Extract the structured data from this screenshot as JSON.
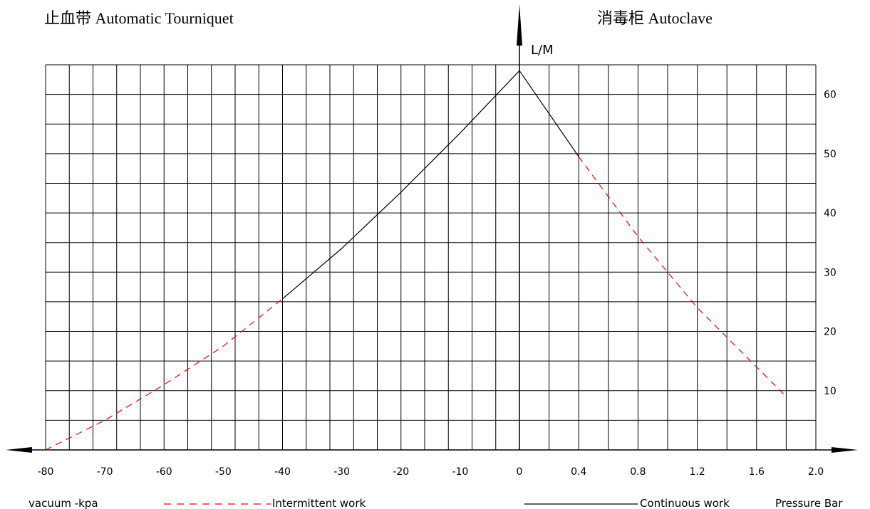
{
  "titles": {
    "left": "止血带 Automatic Tourniquet",
    "right": "消毒柜 Autoclave"
  },
  "chart_data": {
    "type": "line",
    "y_axis": {
      "label": "L/M",
      "range": [
        0,
        65
      ],
      "ticks": [
        10,
        20,
        30,
        40,
        50,
        60
      ],
      "grid_step": 5
    },
    "x_axis_left": {
      "label": "vacuum -kpa",
      "range": [
        -80,
        0
      ],
      "ticks": [
        -80,
        -70,
        -60,
        -50,
        -40,
        -30,
        -20,
        -10,
        0
      ]
    },
    "x_axis_right": {
      "label": "Pressure Bar",
      "range": [
        0,
        2.0
      ],
      "ticks": [
        "0.4",
        "0.8",
        "1.2",
        "1.6",
        "2.0"
      ],
      "tick_values": [
        0.4,
        0.8,
        1.2,
        1.6,
        2.0
      ]
    },
    "legend": [
      {
        "name": "Intermittent work",
        "style": "dashed",
        "color": "#ff0000"
      },
      {
        "name": "Continuous work",
        "style": "solid",
        "color": "#000000"
      }
    ],
    "grid": true,
    "series": [
      {
        "name": "Intermittent work",
        "side": "vacuum",
        "points": [
          [
            -80,
            0
          ],
          [
            -70,
            5
          ],
          [
            -60,
            11
          ],
          [
            -50,
            17.5
          ],
          [
            -40,
            25.5
          ]
        ]
      },
      {
        "name": "Continuous work",
        "side": "vacuum",
        "points": [
          [
            -40,
            25.5
          ],
          [
            -30,
            34
          ],
          [
            -20,
            43.5
          ],
          [
            -10,
            53.5
          ],
          [
            0,
            64
          ]
        ]
      },
      {
        "name": "Continuous work",
        "side": "pressure",
        "points": [
          [
            0,
            64
          ],
          [
            0.4,
            49.5
          ]
        ]
      },
      {
        "name": "Intermittent work",
        "side": "pressure",
        "points": [
          [
            0.4,
            49.5
          ],
          [
            0.8,
            36
          ],
          [
            1.2,
            24
          ],
          [
            1.6,
            14
          ],
          [
            1.8,
            9
          ]
        ]
      }
    ]
  }
}
